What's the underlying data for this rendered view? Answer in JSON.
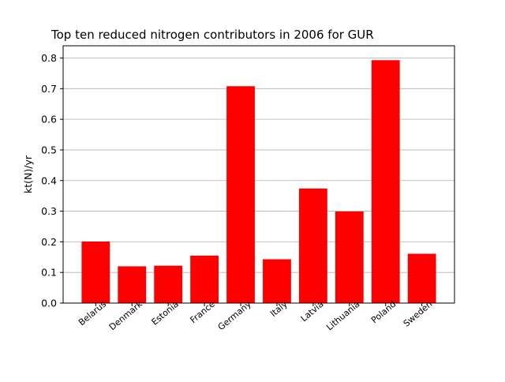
{
  "chart_data": {
    "type": "bar",
    "title": "Top ten reduced nitrogen contributors in 2006 for  GUR",
    "xlabel": "",
    "ylabel": "kt(N)/yr",
    "categories": [
      "Belarus",
      "Denmark",
      "Estonia",
      "France",
      "Germany",
      "Italy",
      "Latvia",
      "Lithuania",
      "Poland",
      "Sweden"
    ],
    "values": [
      0.201,
      0.12,
      0.122,
      0.155,
      0.708,
      0.143,
      0.374,
      0.299,
      0.793,
      0.161
    ],
    "ylim": [
      0,
      0.84
    ],
    "yticks": [
      0.0,
      0.1,
      0.2,
      0.3,
      0.4,
      0.5,
      0.6,
      0.7,
      0.8
    ],
    "ytick_labels": [
      "0.0",
      "0.1",
      "0.2",
      "0.3",
      "0.4",
      "0.5",
      "0.6",
      "0.7",
      "0.8"
    ],
    "grid": "y",
    "colors": {
      "bar": "#ff0000",
      "grid": "#b0b0b0",
      "axis": "#000000"
    }
  }
}
